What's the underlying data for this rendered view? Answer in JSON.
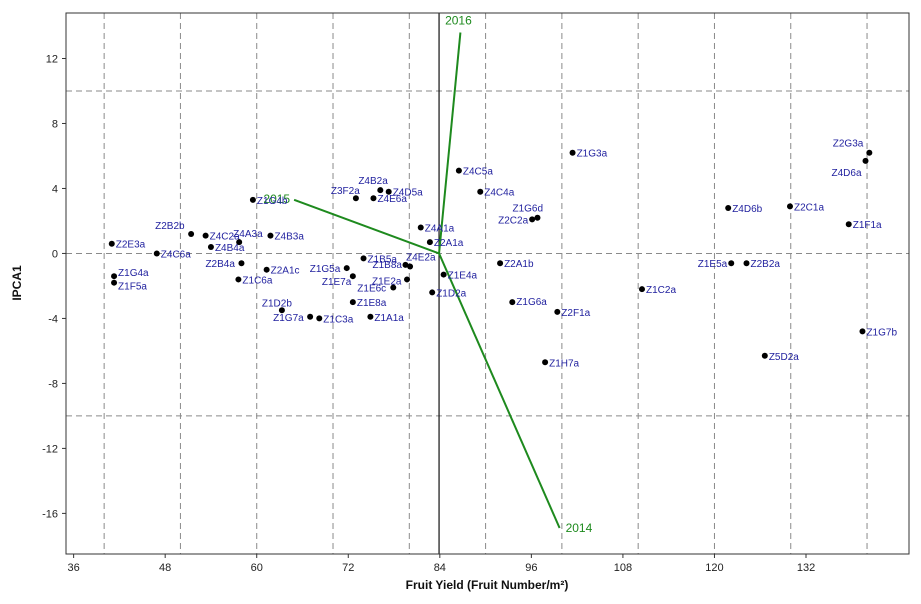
{
  "chart_data": {
    "type": "scatter",
    "title": "",
    "xlabel": "Fruit Yield (Fruit Number/m²)",
    "ylabel": "IPCA1",
    "xlim": [
      35,
      145.5
    ],
    "ylim": [
      -18.5,
      14.8
    ],
    "xticks": [
      36,
      48,
      60,
      72,
      84,
      96,
      108,
      120,
      132
    ],
    "yticks": [
      12,
      8,
      4,
      0,
      -4,
      -8,
      -12,
      -16
    ],
    "grid_x": [
      40,
      50,
      60,
      70,
      80,
      90,
      100,
      110,
      120,
      130,
      140
    ],
    "grid_y": [
      10,
      0,
      -10
    ],
    "grid": true,
    "origin": {
      "x": 83.9,
      "y": 0
    },
    "points": [
      {
        "label": "Z2E3a",
        "x": 41.0,
        "y": 0.6
      },
      {
        "label": "Z1G4a",
        "x": 41.3,
        "y": -1.4
      },
      {
        "label": "Z1F5a",
        "x": 41.3,
        "y": -1.8
      },
      {
        "label": "Z4C6a",
        "x": 46.9,
        "y": 0.0
      },
      {
        "label": "Z2B2b",
        "x": 51.4,
        "y": 1.2
      },
      {
        "label": "Z4C2a",
        "x": 53.3,
        "y": 1.1
      },
      {
        "label": "Z4B4a",
        "x": 54.0,
        "y": 0.4
      },
      {
        "label": "Z4A3a",
        "x": 57.7,
        "y": 0.7
      },
      {
        "label": "Z2B4a",
        "x": 58.0,
        "y": -0.6
      },
      {
        "label": "Z1C6a",
        "x": 57.6,
        "y": -1.6
      },
      {
        "label": "Z1G4b",
        "x": 59.5,
        "y": 3.3
      },
      {
        "label": "Z4B3a",
        "x": 61.8,
        "y": 1.1
      },
      {
        "label": "Z2A1c",
        "x": 61.3,
        "y": -1.0
      },
      {
        "label": "Z1D2b",
        "x": 63.3,
        "y": -3.5
      },
      {
        "label": "Z1G7a",
        "x": 67.0,
        "y": -3.9
      },
      {
        "label": "Z1C3a",
        "x": 68.2,
        "y": -4.0
      },
      {
        "label": "Z1G5a",
        "x": 71.8,
        "y": -0.9
      },
      {
        "label": "Z1E7a",
        "x": 72.6,
        "y": -1.4
      },
      {
        "label": "Z1E8a",
        "x": 72.6,
        "y": -3.0
      },
      {
        "label": "Z3F2a",
        "x": 73.0,
        "y": 3.4
      },
      {
        "label": "Z1B5a",
        "x": 74.0,
        "y": -0.3
      },
      {
        "label": "Z1A1a",
        "x": 74.9,
        "y": -3.9
      },
      {
        "label": "Z4E6a",
        "x": 75.3,
        "y": 3.4
      },
      {
        "label": "Z4B2a",
        "x": 76.2,
        "y": 3.9
      },
      {
        "label": "Z4D5a",
        "x": 77.3,
        "y": 3.8
      },
      {
        "label": "Z1E6c",
        "x": 77.9,
        "y": -2.1
      },
      {
        "label": "Z1B8a",
        "x": 79.5,
        "y": -0.7
      },
      {
        "label": "Z1E2a",
        "x": 79.7,
        "y": -1.6
      },
      {
        "label": "Z4E2a",
        "x": 80.1,
        "y": -0.8
      },
      {
        "label": "Z4A1a",
        "x": 81.5,
        "y": 1.6
      },
      {
        "label": "Z2A1a",
        "x": 82.7,
        "y": 0.7
      },
      {
        "label": "Z1D2a",
        "x": 83.0,
        "y": -2.4
      },
      {
        "label": "Z1E4a",
        "x": 84.5,
        "y": -1.3
      },
      {
        "label": "Z4C5a",
        "x": 86.5,
        "y": 5.1
      },
      {
        "label": "Z4C4a",
        "x": 89.3,
        "y": 3.8
      },
      {
        "label": "Z2A1b",
        "x": 91.9,
        "y": -0.6
      },
      {
        "label": "Z1G6a",
        "x": 93.5,
        "y": -3.0
      },
      {
        "label": "Z1G6d",
        "x": 96.8,
        "y": 2.2
      },
      {
        "label": "Z2C2a",
        "x": 96.1,
        "y": 2.1
      },
      {
        "label": "Z2F1a",
        "x": 99.4,
        "y": -3.6
      },
      {
        "label": "Z1G3a",
        "x": 101.4,
        "y": 6.2
      },
      {
        "label": "Z1H7a",
        "x": 97.8,
        "y": -6.7
      },
      {
        "label": "Z1C2a",
        "x": 110.5,
        "y": -2.2
      },
      {
        "label": "Z1E5a",
        "x": 122.2,
        "y": -0.6
      },
      {
        "label": "Z2B2a",
        "x": 124.2,
        "y": -0.6
      },
      {
        "label": "Z4D6b",
        "x": 121.8,
        "y": 2.8
      },
      {
        "label": "Z2C1a",
        "x": 129.9,
        "y": 2.9
      },
      {
        "label": "Z5D2a",
        "x": 126.6,
        "y": -6.3
      },
      {
        "label": "Z1F1a",
        "x": 137.6,
        "y": 1.8
      },
      {
        "label": "Z2G3a",
        "x": 140.3,
        "y": 6.2
      },
      {
        "label": "Z4D6a",
        "x": 139.8,
        "y": 5.7
      },
      {
        "label": "Z1G7b",
        "x": 139.4,
        "y": -4.8
      }
    ],
    "vectors": [
      {
        "label": "2014",
        "x": 99.7,
        "y": -16.9
      },
      {
        "label": "2015",
        "x": 64.9,
        "y": 3.3
      },
      {
        "label": "2016",
        "x": 86.7,
        "y": 13.6
      }
    ]
  }
}
